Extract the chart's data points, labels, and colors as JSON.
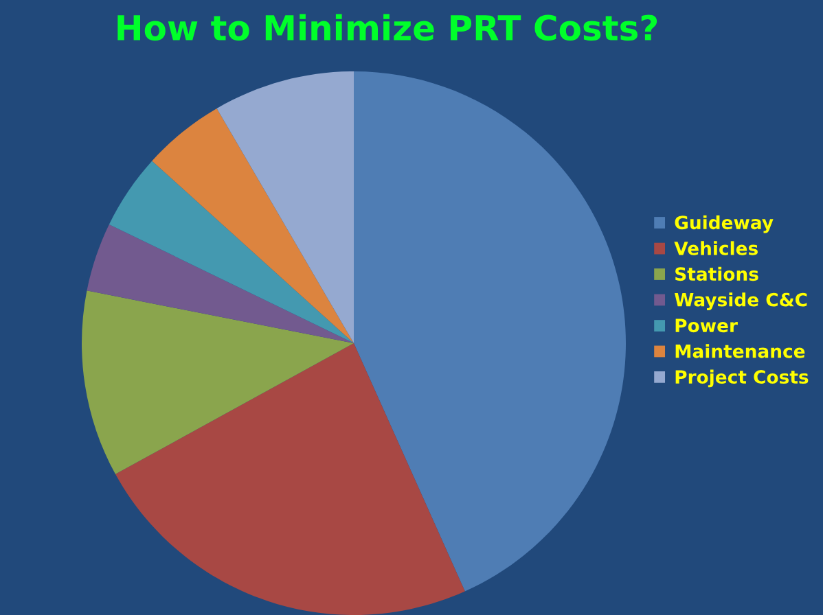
{
  "chart_data": {
    "type": "pie",
    "title": "How to Minimize PRT Costs?",
    "categories": [
      "Guideway",
      "Vehicles",
      "Stations",
      "Wayside C&C",
      "Power",
      "Maintenance",
      "Project Costs"
    ],
    "values": [
      43.3,
      23.7,
      11.1,
      4.1,
      4.5,
      4.9,
      8.4
    ],
    "colors": [
      "#4f7db4",
      "#a84844",
      "#8aa54d",
      "#725a8f",
      "#4499b0",
      "#dc843f",
      "#95a9d0"
    ],
    "legend": "right"
  }
}
